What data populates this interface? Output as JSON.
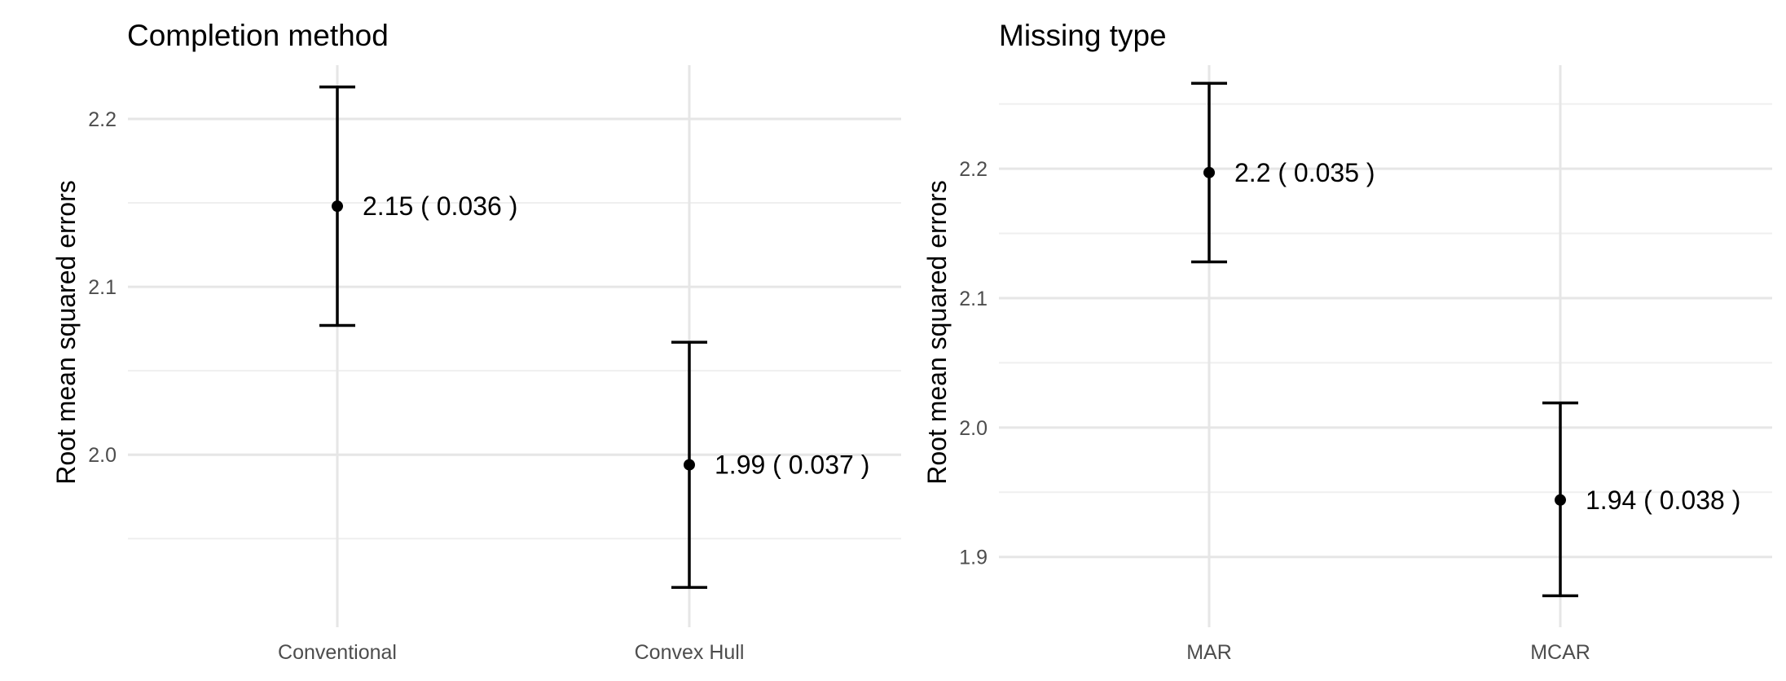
{
  "chart_data": [
    {
      "type": "errorbar",
      "title": "Completion method",
      "ylabel": "Root mean squared errors",
      "xlabel": "",
      "categories": [
        "Conventional",
        "Convex Hull"
      ],
      "values": [
        2.148,
        1.994
      ],
      "lower": [
        2.077,
        1.921
      ],
      "upper": [
        2.219,
        2.067
      ],
      "labels": [
        "2.15  ( 0.036 )",
        "1.99  ( 0.037 )"
      ],
      "ylim": [
        1.906,
        2.232
      ],
      "yticks": [
        2.0,
        2.1,
        2.2
      ],
      "ytick_labels": [
        "2.0",
        "2.1",
        "2.2"
      ],
      "grid": true
    },
    {
      "type": "errorbar",
      "title": "Missing type",
      "ylabel": "Root mean squared errors",
      "xlabel": "",
      "categories": [
        "MAR",
        "MCAR"
      ],
      "values": [
        2.197,
        1.944
      ],
      "lower": [
        2.128,
        1.87
      ],
      "upper": [
        2.266,
        2.019
      ],
      "labels": [
        "2.2  ( 0.035 )",
        "1.94  ( 0.038 )"
      ],
      "ylim": [
        1.857,
        2.28
      ],
      "yticks": [
        1.9,
        2.0,
        2.1,
        2.2
      ],
      "ytick_labels": [
        "1.9",
        "2.0",
        "2.1",
        "2.2"
      ],
      "grid": true
    }
  ]
}
